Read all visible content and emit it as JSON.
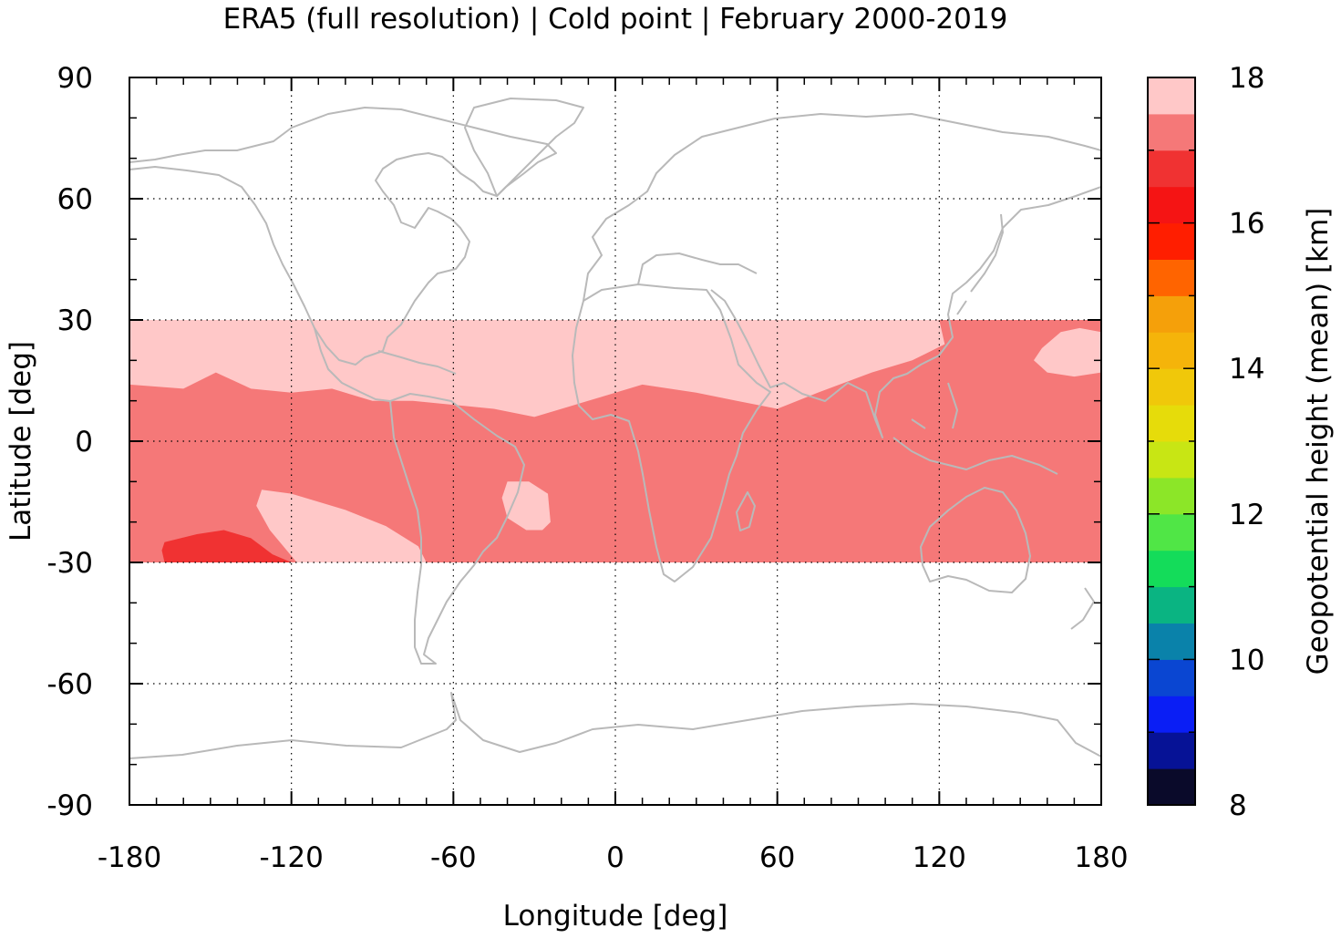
{
  "title": "ERA5 (full resolution) | Cold point | February 2000-2019",
  "chart_data": {
    "type": "heatmap",
    "title": "ERA5 (full resolution) | Cold point | February 2000-2019",
    "xlabel": "Longitude [deg]",
    "ylabel": "Latitude [deg]",
    "colorbar_label": "Geopotential height (mean) [km]",
    "xlim": [
      -180,
      180
    ],
    "ylim": [
      -90,
      90
    ],
    "xticks": [
      -180,
      -120,
      -60,
      0,
      60,
      120,
      180
    ],
    "yticks": [
      -90,
      -60,
      -30,
      0,
      30,
      60,
      90
    ],
    "x_tick_labels": [
      "-180",
      "-120",
      "-60",
      "0",
      "60",
      "120",
      "180"
    ],
    "y_tick_labels": [
      "-90",
      "-60",
      "-30",
      "0",
      "30",
      "60",
      "90"
    ],
    "grid": true,
    "data_lat_range": [
      -30,
      30
    ],
    "colorbar": {
      "range": [
        8,
        18
      ],
      "step": 0.5,
      "ticks": [
        8,
        10,
        12,
        14,
        16,
        18
      ],
      "tick_labels": [
        "8",
        "10",
        "12",
        "14",
        "16",
        "18"
      ],
      "colors": [
        "#0a0a2a",
        "#061296",
        "#0a1ef5",
        "#0a46d2",
        "#0a82aa",
        "#0ab482",
        "#14dc5a",
        "#50e646",
        "#8ce628",
        "#c8e614",
        "#e6dc0a",
        "#f0c80a",
        "#f5b40a",
        "#f5a00a",
        "#ff6400",
        "#ff1e00",
        "#f51414",
        "#f03232",
        "#f57878",
        "#ffc8c8"
      ]
    },
    "regions": [
      {
        "level": "17.5-18",
        "color": "#ffc8c8",
        "description": "northern subtropical band",
        "polygon": [
          [
            -180,
            30
          ],
          [
            120,
            30
          ],
          [
            122,
            24
          ],
          [
            110,
            20
          ],
          [
            95,
            17
          ],
          [
            75,
            12
          ],
          [
            60,
            8
          ],
          [
            45,
            10
          ],
          [
            30,
            12
          ],
          [
            10,
            14
          ],
          [
            -5,
            11
          ],
          [
            -15,
            9
          ],
          [
            -30,
            6
          ],
          [
            -45,
            8
          ],
          [
            -60,
            9
          ],
          [
            -75,
            10
          ],
          [
            -90,
            10
          ],
          [
            -105,
            13
          ],
          [
            -120,
            12
          ],
          [
            -135,
            13
          ],
          [
            -148,
            17
          ],
          [
            -160,
            13
          ],
          [
            -180,
            14
          ]
        ]
      },
      {
        "level": "17.5-18",
        "color": "#ffc8c8",
        "description": "north-west Pacific patch",
        "polygon": [
          [
            158,
            23
          ],
          [
            165,
            27
          ],
          [
            172,
            28
          ],
          [
            180,
            27
          ],
          [
            180,
            17
          ],
          [
            170,
            16
          ],
          [
            160,
            17
          ],
          [
            155,
            20
          ]
        ]
      },
      {
        "level": "17.5-18",
        "color": "#ffc8c8",
        "description": "south-east Pacific tongue",
        "polygon": [
          [
            -131,
            -12
          ],
          [
            -120,
            -13
          ],
          [
            -100,
            -17
          ],
          [
            -85,
            -21
          ],
          [
            -73,
            -26
          ],
          [
            -70,
            -30
          ],
          [
            -118,
            -30
          ],
          [
            -128,
            -22
          ],
          [
            -133,
            -16
          ]
        ]
      },
      {
        "level": "17.5-18",
        "color": "#ffc8c8",
        "description": "South Atlantic off Brazil",
        "polygon": [
          [
            -40,
            -10
          ],
          [
            -32,
            -10
          ],
          [
            -25,
            -13
          ],
          [
            -24,
            -20
          ],
          [
            -27,
            -22
          ],
          [
            -33,
            -22
          ],
          [
            -40,
            -19
          ],
          [
            -42,
            -14
          ]
        ]
      },
      {
        "level": "16.5-17",
        "color": "#f03232",
        "description": "South Pacific low",
        "polygon": [
          [
            -167,
            -25
          ],
          [
            -155,
            -23
          ],
          [
            -145,
            -22
          ],
          [
            -135,
            -24
          ],
          [
            -127,
            -28
          ],
          [
            -120,
            -30
          ],
          [
            -167,
            -30
          ],
          [
            -168,
            -27
          ]
        ]
      }
    ],
    "band_color_17_17_5": "#f57878"
  }
}
